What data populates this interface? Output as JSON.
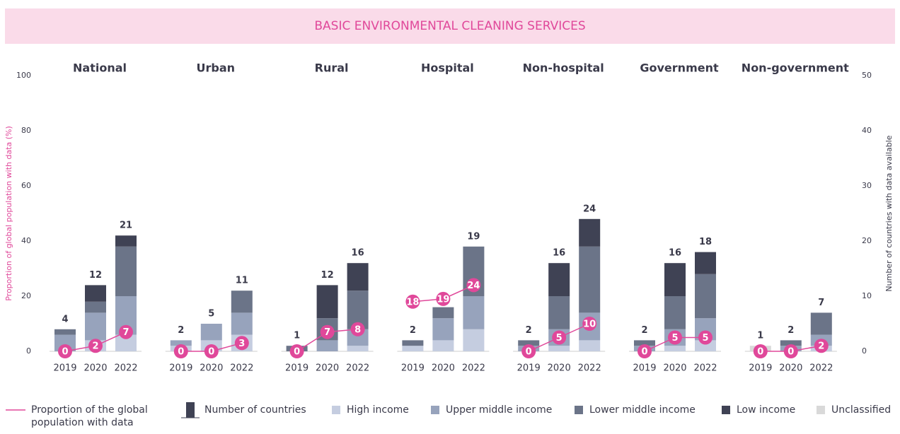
{
  "chart_data": {
    "type": "bar",
    "title": "BASIC ENVIRONMENTAL CLEANING SERVICES",
    "ylabel": "Proportion of global population with data (%)",
    "y2label": "Number of countries with data available",
    "ylim": [
      0,
      100
    ],
    "yticks": [
      0,
      20,
      40,
      60,
      80,
      100
    ],
    "y2lim": [
      0,
      50
    ],
    "y2ticks": [
      0,
      10,
      20,
      30,
      40,
      50
    ],
    "categories": [
      "2019",
      "2020",
      "2022"
    ],
    "line": {
      "name": "Proportion of the global population with data",
      "color": "#e0489a"
    },
    "total_legend": "Number of countries",
    "series": [
      {
        "name": "High income",
        "color": "#c5cde0"
      },
      {
        "name": "Upper middle income",
        "color": "#97a3bc"
      },
      {
        "name": "Lower middle income",
        "color": "#6b7488"
      },
      {
        "name": "Low income",
        "color": "#3f4254"
      },
      {
        "name": "Unclassified",
        "color": "#d9d9d9"
      }
    ],
    "panels": [
      {
        "title": "National",
        "totals": [
          4,
          12,
          21
        ],
        "proportion": [
          0,
          2,
          7
        ],
        "segments": [
          [
            0,
            2,
            3
          ],
          [
            3,
            5,
            7
          ],
          [
            1,
            2,
            9
          ],
          [
            0,
            3,
            2
          ],
          [
            0,
            0,
            0
          ]
        ]
      },
      {
        "title": "Urban",
        "totals": [
          2,
          5,
          11
        ],
        "proportion": [
          0,
          0,
          3
        ],
        "segments": [
          [
            1,
            2,
            3
          ],
          [
            1,
            3,
            4
          ],
          [
            0,
            0,
            4
          ],
          [
            0,
            0,
            0
          ],
          [
            0,
            0,
            0
          ]
        ]
      },
      {
        "title": "Rural",
        "totals": [
          1,
          12,
          16
        ],
        "proportion": [
          0,
          7,
          8
        ],
        "segments": [
          [
            0,
            0,
            1
          ],
          [
            0,
            2,
            3
          ],
          [
            1,
            4,
            7
          ],
          [
            0,
            6,
            5
          ],
          [
            0,
            0,
            0
          ]
        ]
      },
      {
        "title": "Hospital",
        "totals": [
          2,
          8,
          19
        ],
        "proportion": [
          18,
          19,
          24
        ],
        "segments": [
          [
            1,
            2,
            4
          ],
          [
            0,
            4,
            6
          ],
          [
            1,
            2,
            9
          ],
          [
            0,
            0,
            0
          ],
          [
            0,
            0,
            0
          ]
        ]
      },
      {
        "title": "Non-hospital",
        "totals": [
          2,
          16,
          24
        ],
        "proportion": [
          0,
          5,
          10
        ],
        "segments": [
          [
            0,
            1,
            2
          ],
          [
            1,
            3,
            5
          ],
          [
            1,
            6,
            12
          ],
          [
            0,
            6,
            5
          ],
          [
            0,
            0,
            0
          ]
        ]
      },
      {
        "title": "Government",
        "totals": [
          2,
          16,
          18
        ],
        "proportion": [
          0,
          5,
          5
        ],
        "segments": [
          [
            0,
            1,
            2
          ],
          [
            1,
            3,
            4
          ],
          [
            1,
            6,
            8
          ],
          [
            0,
            6,
            4
          ],
          [
            0,
            0,
            0
          ]
        ]
      },
      {
        "title": "Non-government",
        "totals": [
          1,
          2,
          7
        ],
        "proportion": [
          0,
          0,
          2
        ],
        "segments": [
          [
            0,
            0,
            1
          ],
          [
            0,
            1,
            2
          ],
          [
            0,
            1,
            4
          ],
          [
            0,
            0,
            0
          ],
          [
            1,
            0,
            0
          ]
        ]
      }
    ]
  }
}
